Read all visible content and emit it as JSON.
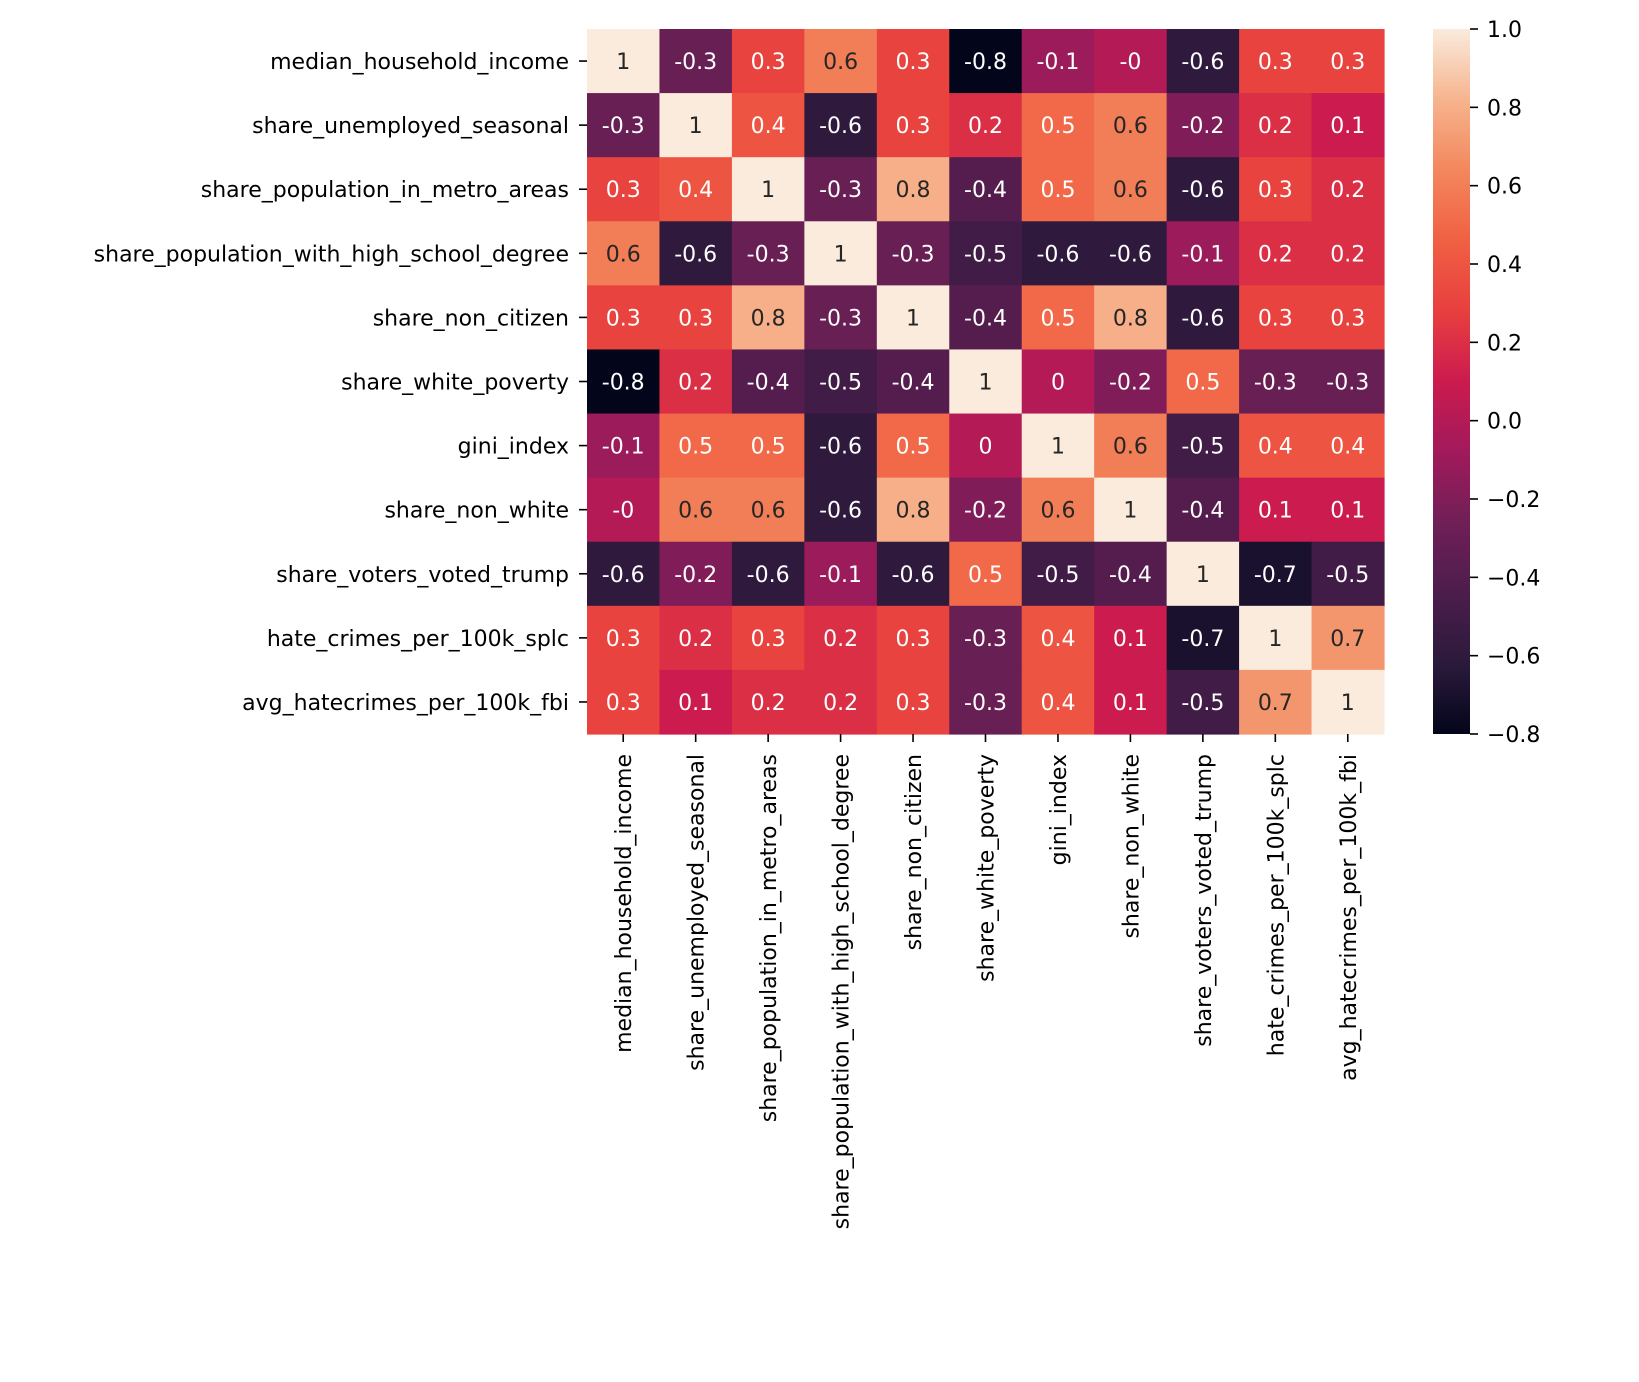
{
  "chart_data": {
    "type": "heatmap",
    "title": "",
    "labels": [
      "median_household_income",
      "share_unemployed_seasonal",
      "share_population_in_metro_areas",
      "share_population_with_high_school_degree",
      "share_non_citizen",
      "share_white_poverty",
      "gini_index",
      "share_non_white",
      "share_voters_voted_trump",
      "hate_crimes_per_100k_splc",
      "avg_hatecrimes_per_100k_fbi"
    ],
    "values": [
      [
        1,
        -0.3,
        0.3,
        0.6,
        0.3,
        -0.8,
        -0.1,
        -0.0,
        -0.6,
        0.3,
        0.3
      ],
      [
        -0.3,
        1,
        0.4,
        -0.6,
        0.3,
        0.2,
        0.5,
        0.6,
        -0.2,
        0.2,
        0.1
      ],
      [
        0.3,
        0.4,
        1,
        -0.3,
        0.8,
        -0.4,
        0.5,
        0.6,
        -0.6,
        0.3,
        0.2
      ],
      [
        0.6,
        -0.6,
        -0.3,
        1,
        -0.3,
        -0.5,
        -0.6,
        -0.6,
        -0.1,
        0.2,
        0.2
      ],
      [
        0.3,
        0.3,
        0.8,
        -0.3,
        1,
        -0.4,
        0.5,
        0.8,
        -0.6,
        0.3,
        0.3
      ],
      [
        -0.8,
        0.2,
        -0.4,
        -0.5,
        -0.4,
        1,
        0,
        -0.2,
        0.5,
        -0.3,
        -0.3
      ],
      [
        -0.1,
        0.5,
        0.5,
        -0.6,
        0.5,
        0,
        1,
        0.6,
        -0.5,
        0.4,
        0.4
      ],
      [
        -0.0,
        0.6,
        0.6,
        -0.6,
        0.8,
        -0.2,
        0.6,
        1,
        -0.4,
        0.1,
        0.1
      ],
      [
        -0.6,
        -0.2,
        -0.6,
        -0.1,
        -0.6,
        0.5,
        -0.5,
        -0.4,
        1,
        -0.7,
        -0.5
      ],
      [
        0.3,
        0.2,
        0.3,
        0.2,
        0.3,
        -0.3,
        0.4,
        0.1,
        -0.7,
        1,
        0.7
      ],
      [
        0.3,
        0.1,
        0.2,
        0.2,
        0.3,
        -0.3,
        0.4,
        0.1,
        -0.5,
        0.7,
        1
      ]
    ],
    "annotations": [
      [
        "1",
        "-0.3",
        "0.3",
        "0.6",
        "0.3",
        "-0.8",
        "-0.1",
        "-0",
        "-0.6",
        "0.3",
        "0.3"
      ],
      [
        "-0.3",
        "1",
        "0.4",
        "-0.6",
        "0.3",
        "0.2",
        "0.5",
        "0.6",
        "-0.2",
        "0.2",
        "0.1"
      ],
      [
        "0.3",
        "0.4",
        "1",
        "-0.3",
        "0.8",
        "-0.4",
        "0.5",
        "0.6",
        "-0.6",
        "0.3",
        "0.2"
      ],
      [
        "0.6",
        "-0.6",
        "-0.3",
        "1",
        "-0.3",
        "-0.5",
        "-0.6",
        "-0.6",
        "-0.1",
        "0.2",
        "0.2"
      ],
      [
        "0.3",
        "0.3",
        "0.8",
        "-0.3",
        "1",
        "-0.4",
        "0.5",
        "0.8",
        "-0.6",
        "0.3",
        "0.3"
      ],
      [
        "-0.8",
        "0.2",
        "-0.4",
        "-0.5",
        "-0.4",
        "1",
        "0",
        "-0.2",
        "0.5",
        "-0.3",
        "-0.3"
      ],
      [
        "-0.1",
        "0.5",
        "0.5",
        "-0.6",
        "0.5",
        "0",
        "1",
        "0.6",
        "-0.5",
        "0.4",
        "0.4"
      ],
      [
        "-0",
        "0.6",
        "0.6",
        "-0.6",
        "0.8",
        "-0.2",
        "0.6",
        "1",
        "-0.4",
        "0.1",
        "0.1"
      ],
      [
        "-0.6",
        "-0.2",
        "-0.6",
        "-0.1",
        "-0.6",
        "0.5",
        "-0.5",
        "-0.4",
        "1",
        "-0.7",
        "-0.5"
      ],
      [
        "0.3",
        "0.2",
        "0.3",
        "0.2",
        "0.3",
        "-0.3",
        "0.4",
        "0.1",
        "-0.7",
        "1",
        "0.7"
      ],
      [
        "0.3",
        "0.1",
        "0.2",
        "0.2",
        "0.3",
        "-0.3",
        "0.4",
        "0.1",
        "-0.5",
        "0.7",
        "1"
      ]
    ],
    "colorbar": {
      "range": [
        -0.8,
        1.0
      ],
      "ticks": [
        1.0,
        0.8,
        0.6,
        0.4,
        0.2,
        0.0,
        -0.2,
        -0.4,
        -0.6,
        -0.8
      ],
      "tick_labels": [
        "1.0",
        "0.8",
        "0.6",
        "0.4",
        "0.2",
        "0.0",
        "−0.2",
        "−0.4",
        "−0.6",
        "−0.8"
      ],
      "colormap": "rocket"
    },
    "xlabel": "",
    "ylabel": "",
    "colormap_stops": [
      "#03051a",
      "#2b1a3c",
      "#4c1d4b",
      "#701f57",
      "#a11a5b",
      "#cb1b4f",
      "#e83f3f",
      "#f06043",
      "#f3875d",
      "#f6b48e",
      "#faebdd"
    ]
  }
}
